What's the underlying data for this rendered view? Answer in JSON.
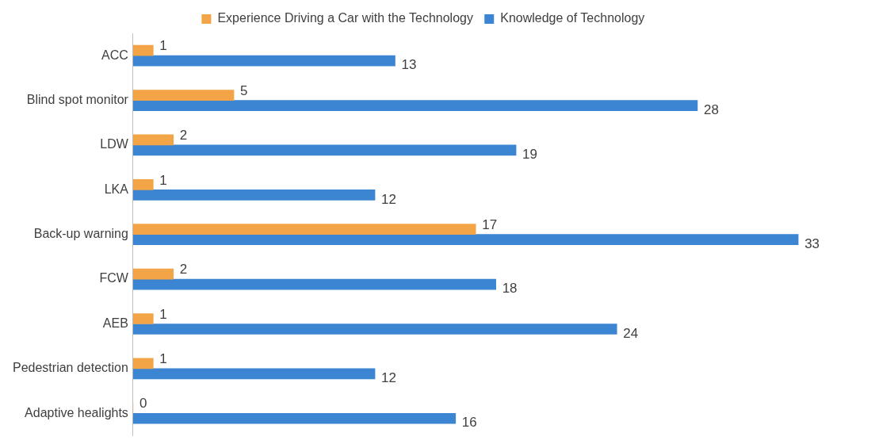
{
  "chart_data": {
    "type": "bar",
    "orientation": "horizontal",
    "categories": [
      "ACC",
      "Blind spot monitor",
      "LDW",
      "LKA",
      "Back-up warning",
      "FCW",
      "AEB",
      "Pedestrian detection",
      "Adaptive healights"
    ],
    "series": [
      {
        "name": "Experience Driving a Car with the Technology",
        "color": "#f2a446",
        "values": [
          1,
          5,
          2,
          1,
          17,
          2,
          1,
          1,
          0
        ]
      },
      {
        "name": "Knowledge of Technology",
        "color": "#3c85d2",
        "values": [
          13,
          28,
          19,
          12,
          33,
          18,
          24,
          12,
          16
        ]
      }
    ],
    "tick_labels": "y",
    "data_labels": true,
    "legend": "top",
    "grid": false
  }
}
